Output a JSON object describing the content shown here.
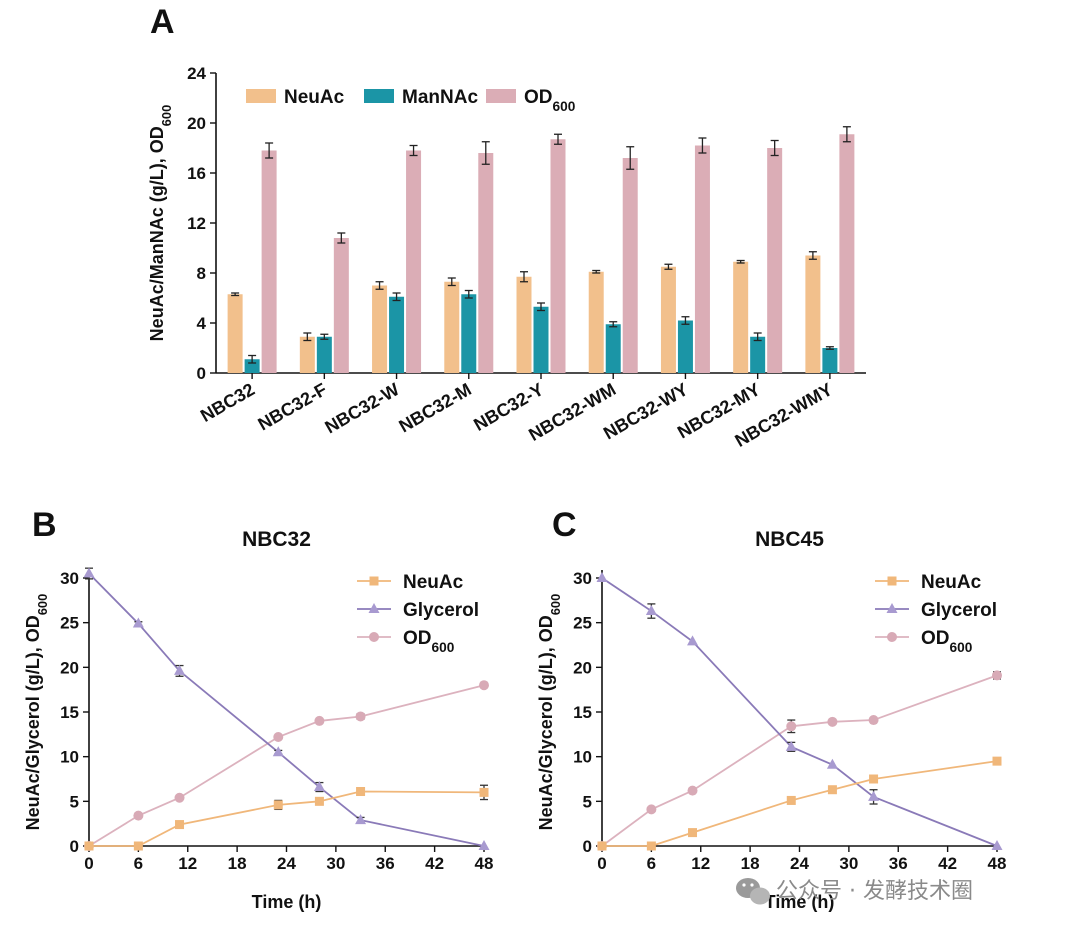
{
  "colors": {
    "neuac": "#f2c08c",
    "mannac": "#1b95a6",
    "od600": "#dbadb6",
    "neuac_line": "#f0b77a",
    "glycerol_line": "#8a7ab8",
    "glycerol_marker": "#a89ad0",
    "od600_line": "#dcb2be",
    "od600_marker": "#d8aab6",
    "axis": "#111111",
    "watermark": "#8a8a8a"
  },
  "panels": {
    "a": {
      "letter": "A"
    },
    "b": {
      "letter": "B"
    },
    "c": {
      "letter": "C"
    }
  },
  "watermark": {
    "text": "公众号 · 发酵技术圈",
    "icon": "wechat-icon"
  },
  "chart_data": [
    {
      "id": "A",
      "type": "bar",
      "title": "",
      "xlabel": "",
      "ylabel": "NeuAc/ManNAc (g/L), OD",
      "ylabel_sub": "600",
      "ylim": [
        0,
        24
      ],
      "yticks": [
        0,
        4,
        8,
        12,
        16,
        20,
        24
      ],
      "grid": false,
      "legend_position": "top",
      "categories": [
        "NBC32",
        "NBC32-F",
        "NBC32-W",
        "NBC32-M",
        "NBC32-Y",
        "NBC32-WM",
        "NBC32-WY",
        "NBC32-MY",
        "NBC32-WMY"
      ],
      "series": [
        {
          "name": "NeuAc",
          "sub": "",
          "color_key": "neuac",
          "values": [
            6.3,
            2.9,
            7.0,
            7.3,
            7.7,
            8.1,
            8.5,
            8.9,
            9.4
          ],
          "errors": [
            0.1,
            0.3,
            0.3,
            0.3,
            0.4,
            0.1,
            0.2,
            0.1,
            0.3
          ]
        },
        {
          "name": "ManNAc",
          "sub": "",
          "color_key": "mannac",
          "values": [
            1.1,
            2.9,
            6.1,
            6.3,
            5.3,
            3.9,
            4.2,
            2.9,
            2.0
          ],
          "errors": [
            0.3,
            0.2,
            0.3,
            0.3,
            0.3,
            0.2,
            0.3,
            0.3,
            0.1
          ]
        },
        {
          "name": "OD",
          "sub": "600",
          "color_key": "od600",
          "values": [
            17.8,
            10.8,
            17.8,
            17.6,
            18.7,
            17.2,
            18.2,
            18.0,
            19.1
          ],
          "errors": [
            0.6,
            0.4,
            0.4,
            0.9,
            0.4,
            0.9,
            0.6,
            0.6,
            0.6
          ]
        }
      ]
    },
    {
      "id": "B",
      "type": "line",
      "title": "NBC32",
      "xlabel": "Time (h)",
      "ylabel": "NeuAc/Glycerol (g/L), OD",
      "ylabel_sub": "600",
      "xlim": [
        0,
        48
      ],
      "xticks": [
        0,
        6,
        12,
        18,
        24,
        30,
        36,
        42,
        48
      ],
      "ylim": [
        0,
        30
      ],
      "yticks": [
        0,
        5,
        10,
        15,
        20,
        25,
        30
      ],
      "grid": false,
      "legend_position": "top-right",
      "series": [
        {
          "name": "NeuAc",
          "sub": "",
          "marker": "square",
          "line_key": "neuac_line",
          "marker_key": "neuac_line",
          "x": [
            0,
            6,
            11,
            23,
            28,
            33,
            48
          ],
          "y": [
            0,
            0,
            2.4,
            4.6,
            5.0,
            6.1,
            6.0
          ],
          "errors": [
            0,
            0,
            0.2,
            0.5,
            0.3,
            0.2,
            0.8
          ]
        },
        {
          "name": "Glycerol",
          "sub": "",
          "marker": "triangle",
          "line_key": "glycerol_line",
          "marker_key": "glycerol_marker",
          "x": [
            0,
            6,
            11,
            23,
            28,
            33,
            48
          ],
          "y": [
            30.5,
            24.9,
            19.6,
            10.5,
            6.6,
            2.9,
            0
          ],
          "errors": [
            0.6,
            0.2,
            0.6,
            0.2,
            0.5,
            0.3,
            0
          ]
        },
        {
          "name": "OD",
          "sub": "600",
          "marker": "circle",
          "line_key": "od600_line",
          "marker_key": "od600_marker",
          "x": [
            0,
            6,
            11,
            23,
            28,
            33,
            48
          ],
          "y": [
            0,
            3.4,
            5.4,
            12.2,
            14.0,
            14.5,
            18.0
          ],
          "errors": [
            0,
            0,
            0,
            0,
            0,
            0.3,
            0
          ]
        }
      ]
    },
    {
      "id": "C",
      "type": "line",
      "title": "NBC45",
      "xlabel": "Time (h)",
      "ylabel": "NeuAc/Glycerol (g/L), OD",
      "ylabel_sub": "600",
      "xlim": [
        0,
        48
      ],
      "xticks": [
        0,
        6,
        12,
        18,
        24,
        30,
        36,
        42,
        48
      ],
      "ylim": [
        0,
        30
      ],
      "yticks": [
        0,
        5,
        10,
        15,
        20,
        25,
        30
      ],
      "grid": false,
      "legend_position": "top-right",
      "series": [
        {
          "name": "NeuAc",
          "sub": "",
          "marker": "square",
          "line_key": "neuac_line",
          "marker_key": "neuac_line",
          "x": [
            0,
            6,
            11,
            23,
            28,
            33,
            48
          ],
          "y": [
            0,
            0,
            1.5,
            5.1,
            6.3,
            7.5,
            9.5
          ],
          "errors": [
            0,
            0,
            0,
            0.3,
            0.4,
            0.2,
            0.2
          ]
        },
        {
          "name": "Glycerol",
          "sub": "",
          "marker": "triangle",
          "line_key": "glycerol_line",
          "marker_key": "glycerol_marker",
          "x": [
            0,
            6,
            11,
            23,
            28,
            33,
            48
          ],
          "y": [
            30.0,
            26.3,
            22.9,
            11.1,
            9.1,
            5.5,
            0
          ],
          "errors": [
            0,
            0.8,
            0,
            0.5,
            0,
            0.8,
            0
          ]
        },
        {
          "name": "OD",
          "sub": "600",
          "marker": "circle",
          "line_key": "od600_line",
          "marker_key": "od600_marker",
          "x": [
            0,
            6,
            11,
            23,
            28,
            33,
            48
          ],
          "y": [
            0,
            4.1,
            6.2,
            13.4,
            13.9,
            14.1,
            19.1
          ],
          "errors": [
            0,
            0,
            0,
            0.7,
            0,
            0,
            0.4
          ]
        }
      ]
    }
  ]
}
